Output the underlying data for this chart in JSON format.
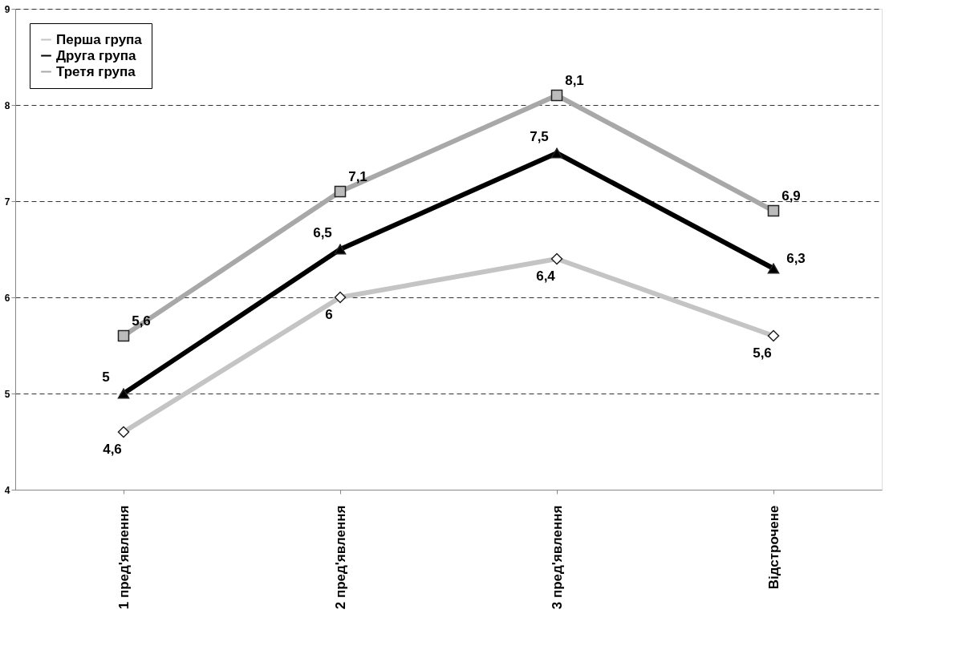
{
  "chart_data": {
    "type": "line",
    "categories": [
      "1 пред'явлення",
      "2 пред'явлення",
      "3 пред'явлення",
      "Відстрочене"
    ],
    "series": [
      {
        "name": "Перша група",
        "color": "#c4c4c4",
        "marker": "diamond",
        "values": [
          4.6,
          6,
          6.4,
          5.6
        ],
        "value_labels": [
          "4,6",
          "6",
          "6,4",
          "5,6"
        ]
      },
      {
        "name": "Друга група",
        "color": "#000000",
        "marker": "triangle",
        "values": [
          5,
          6.5,
          7.5,
          6.3
        ],
        "value_labels": [
          "5",
          "6,5",
          "7,5",
          "6,3"
        ]
      },
      {
        "name": "Третя група",
        "color": "#a8a8a8",
        "marker": "square",
        "values": [
          5.6,
          7.1,
          8.1,
          6.9
        ],
        "value_labels": [
          "5,6",
          "7,1",
          "8,1",
          "6,9"
        ]
      }
    ],
    "ylim": [
      4,
      9
    ],
    "yticks": [
      4,
      5,
      6,
      7,
      8,
      9
    ],
    "grid": "y",
    "line_style": "solid",
    "legend": "top left"
  }
}
